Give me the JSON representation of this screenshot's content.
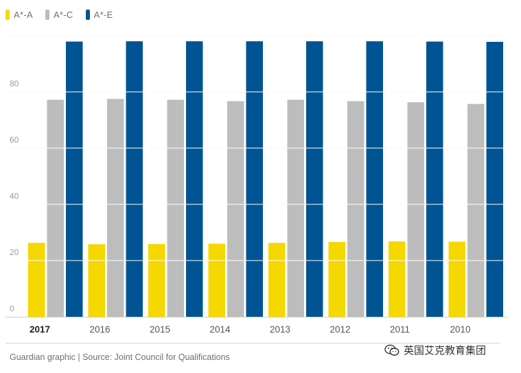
{
  "legend": [
    {
      "label": "A*-A",
      "color": "#f5d800"
    },
    {
      "label": "A*-C",
      "color": "#bdbdbd"
    },
    {
      "label": "A*-E",
      "color": "#005493"
    }
  ],
  "chart_data": {
    "type": "bar",
    "categories": [
      "2017",
      "2016",
      "2015",
      "2014",
      "2013",
      "2012",
      "2011",
      "2010"
    ],
    "bold_category": "2017",
    "series": [
      {
        "name": "A*-A",
        "color": "#f5d800",
        "values": [
          26.3,
          25.8,
          25.9,
          26.0,
          26.3,
          26.6,
          26.8,
          26.7
        ]
      },
      {
        "name": "A*-C",
        "color": "#bdbdbd",
        "values": [
          77.2,
          77.5,
          77.2,
          76.7,
          77.2,
          76.7,
          76.3,
          75.7
        ]
      },
      {
        "name": "A*-E",
        "color": "#005493",
        "values": [
          97.9,
          98.0,
          98.0,
          98.0,
          98.0,
          98.0,
          97.9,
          97.8
        ]
      }
    ],
    "y_ticks": [
      0,
      20,
      40,
      60,
      80
    ],
    "ylim": [
      0,
      100
    ],
    "grid": true
  },
  "footer": {
    "source": "Guardian graphic | Source: Joint Council for Qualifications"
  },
  "watermark": {
    "text": "英国艾克教育集团",
    "icon": "wechat-icon"
  }
}
